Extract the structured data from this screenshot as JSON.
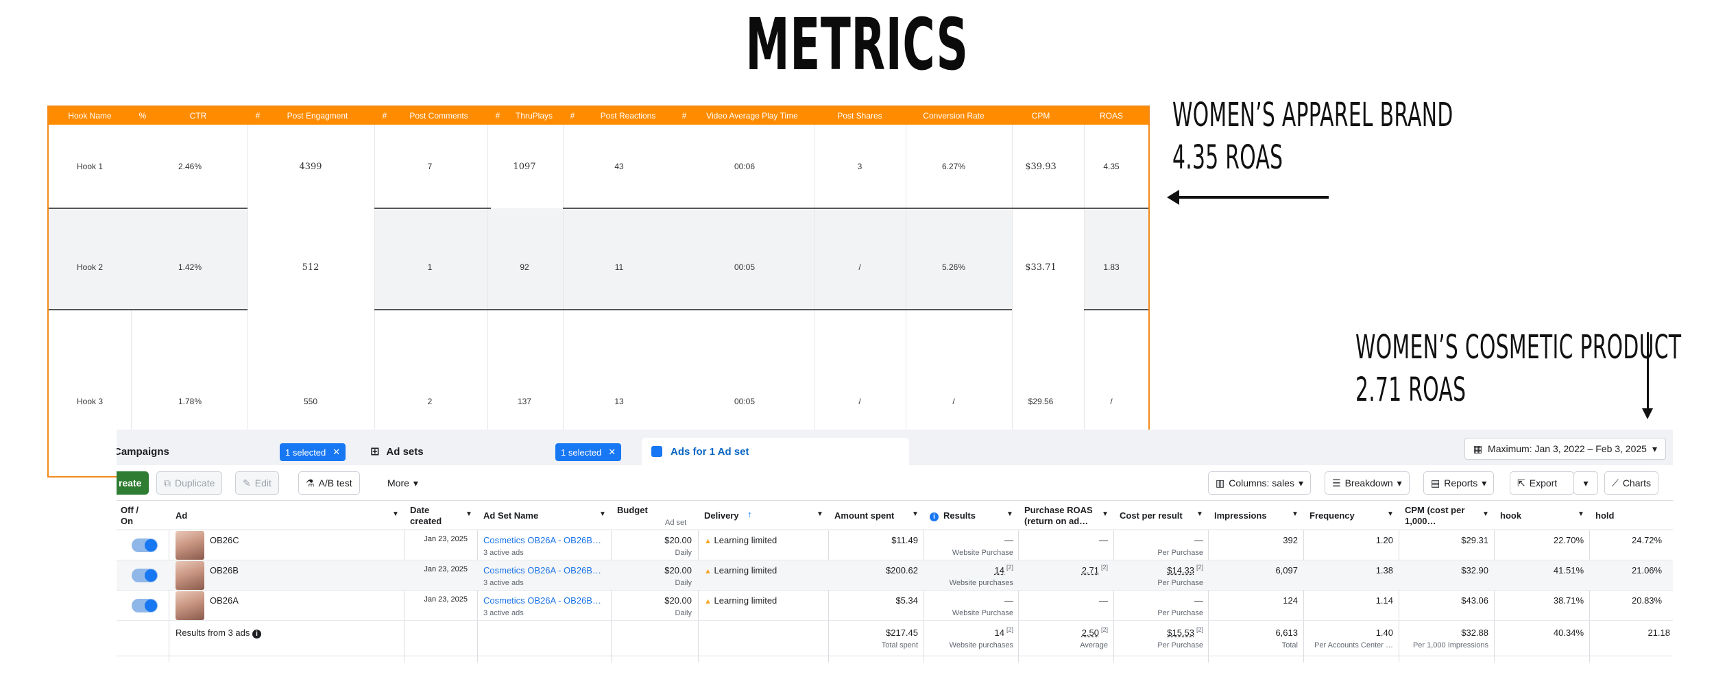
{
  "page_title": "METRICS",
  "metrics_table": {
    "headers": [
      "Hook Name",
      "%",
      "CTR",
      "#",
      "Post Engagment",
      "#",
      "Post Comments",
      "#",
      "ThruPlays",
      "#",
      "Post Reactions",
      "#",
      "Video Average Play Time",
      "Post Shares",
      "Conversion Rate",
      "CPM",
      "ROAS"
    ],
    "rows": [
      {
        "hook": "Hook 1",
        "ctr": "2.46%",
        "engagement": "4399",
        "comments": "7",
        "thruplays": "1097",
        "reactions": "43",
        "play_time": "00:06",
        "shares": "3",
        "conversion": "6.27%",
        "cpm": "$39.93",
        "roas": "4.35"
      },
      {
        "hook": "Hook 2",
        "ctr": "1.42%",
        "engagement": "512",
        "comments": "1",
        "thruplays": "92",
        "reactions": "11",
        "play_time": "00:05",
        "shares": "/",
        "conversion": "5.26%",
        "cpm": "$33.71",
        "roas": "1.83"
      },
      {
        "hook": "Hook 3",
        "ctr": "1.78%",
        "engagement": "550",
        "comments": "2",
        "thruplays": "137",
        "reactions": "13",
        "play_time": "00:05",
        "shares": "/",
        "conversion": "/",
        "cpm": "$29.56",
        "roas": "/"
      }
    ]
  },
  "annotations": {
    "apparel_line1": "WOMEN’S APPAREL BRAND",
    "apparel_line2": "4.35 ROAS",
    "cosmetic_line1": "WOMEN’S COSMETIC PRODUCT",
    "cosmetic_line2": "2.71 ROAS"
  },
  "ads_manager": {
    "tabs": {
      "campaigns": "Campaigns",
      "campaigns_badge": "1 selected",
      "adsets": "Ad sets",
      "adsets_badge": "1 selected",
      "ads": "Ads for 1 Ad set"
    },
    "date_range": "Maximum: Jan 3, 2022 – Feb 3, 2025",
    "toolbar": {
      "create": "reate",
      "duplicate": "Duplicate",
      "edit": "Edit",
      "ab_test": "A/B test",
      "more": "More",
      "columns": "Columns: sales",
      "breakdown": "Breakdown",
      "reports": "Reports",
      "export": "Export",
      "charts": "Charts"
    },
    "columns": {
      "off_on": "Off /\nOn",
      "ad": "Ad",
      "date_created": "Date\ncreated",
      "ad_set_name": "Ad Set Name",
      "budget": "Budget",
      "budget_sub": "Ad set",
      "delivery": "Delivery",
      "amount_spent": "Amount spent",
      "results": "Results",
      "purchase_roas": "Purchase ROAS\n(return on ad…",
      "cost_per_result": "Cost per result",
      "impressions": "Impressions",
      "frequency": "Frequency",
      "cpm": "CPM (cost per\n1,000…",
      "hook": "hook",
      "hold": "hold"
    },
    "rows": [
      {
        "ad": "OB26C",
        "date": "Jan 23, 2025",
        "adset": "Cosmetics OB26A - OB26B…",
        "adset_sub": "3 active ads",
        "budget": "$20.00",
        "budget_sub": "Daily",
        "delivery": "Learning limited",
        "spent": "$11.49",
        "results": "—",
        "results_sub": "Website Purchase",
        "roas": "—",
        "cpr": "—",
        "cpr_sub": "Per Purchase",
        "impressions": "392",
        "frequency": "1.20",
        "cpm": "$29.31",
        "hook": "22.70%",
        "hold": "24.72%"
      },
      {
        "ad": "OB26B",
        "date": "Jan 23, 2025",
        "adset": "Cosmetics OB26A - OB26B…",
        "adset_sub": "3 active ads",
        "budget": "$20.00",
        "budget_sub": "Daily",
        "delivery": "Learning limited",
        "spent": "$200.62",
        "results": "14",
        "results_sub": "Website purchases",
        "roas": "2.71",
        "cpr": "$14.33",
        "cpr_sub": "Per Purchase",
        "impressions": "6,097",
        "frequency": "1.38",
        "cpm": "$32.90",
        "hook": "41.51%",
        "hold": "21.06%"
      },
      {
        "ad": "OB26A",
        "date": "Jan 23, 2025",
        "adset": "Cosmetics OB26A - OB26B…",
        "adset_sub": "3 active ads",
        "budget": "$20.00",
        "budget_sub": "Daily",
        "delivery": "Learning limited",
        "spent": "$5.34",
        "results": "—",
        "results_sub": "Website Purchase",
        "roas": "—",
        "cpr": "—",
        "cpr_sub": "Per Purchase",
        "impressions": "124",
        "frequency": "1.14",
        "cpm": "$43.06",
        "hook": "38.71%",
        "hold": "20.83%"
      }
    ],
    "totals": {
      "label": "Results from 3 ads",
      "spent": "$217.45",
      "spent_sub": "Total spent",
      "results": "14",
      "results_sub": "Website purchases",
      "roas": "2.50",
      "roas_sub": "Average",
      "cpr": "$15.53",
      "cpr_sub": "Per Purchase",
      "impressions": "6,613",
      "impressions_sub": "Total",
      "frequency": "1.40",
      "frequency_sub": "Per Accounts Center …",
      "cpm": "$32.88",
      "cpm_sub": "Per 1,000 Impressions",
      "hook": "40.34%",
      "hold": "21.18"
    }
  }
}
